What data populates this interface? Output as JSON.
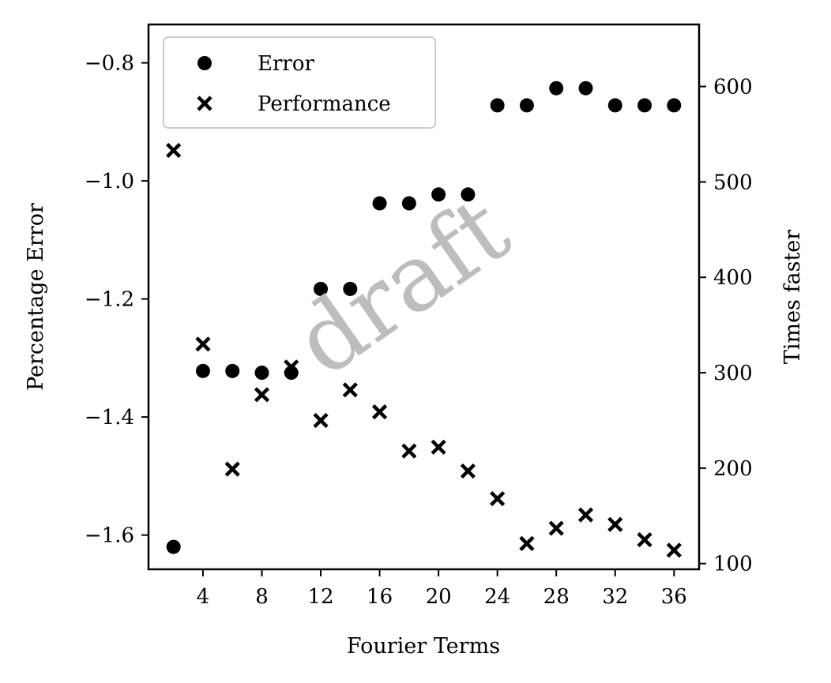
{
  "chart_data": {
    "type": "scatter",
    "xlabel": "Fourier Terms",
    "ylabel": "Percentage Error",
    "y2label": "Times faster",
    "x_ticks": [
      4,
      8,
      12,
      16,
      20,
      24,
      28,
      32,
      36
    ],
    "y_ticks": [
      -0.8,
      -1.0,
      -1.2,
      -1.4,
      -1.6
    ],
    "y2_ticks": [
      100,
      200,
      300,
      400,
      500,
      600
    ],
    "xlim": [
      0.3,
      37.7
    ],
    "ylim": [
      -1.658,
      -0.735
    ],
    "y2lim": [
      94,
      665
    ],
    "legend_position": "top-left",
    "grid": false,
    "watermark": "draft",
    "series": [
      {
        "name": "Error",
        "marker": "circle",
        "axis": "left",
        "x": [
          2,
          4,
          6,
          8,
          10,
          12,
          14,
          16,
          18,
          20,
          22,
          24,
          26,
          28,
          30,
          32,
          34,
          36
        ],
        "values": [
          -1.62,
          -1.322,
          -1.322,
          -1.325,
          -1.325,
          -1.183,
          -1.183,
          -1.038,
          -1.038,
          -1.023,
          -1.023,
          -0.872,
          -0.872,
          -0.843,
          -0.843,
          -0.872,
          -0.872,
          -0.872
        ]
      },
      {
        "name": "Performance",
        "marker": "x",
        "axis": "right",
        "x": [
          2,
          4,
          6,
          8,
          10,
          12,
          14,
          16,
          18,
          20,
          22,
          24,
          26,
          28,
          30,
          32,
          34,
          36
        ],
        "values": [
          533,
          330,
          199,
          277,
          306,
          250,
          282,
          259,
          218,
          222,
          197,
          168,
          121,
          137,
          151,
          141,
          125,
          114
        ]
      }
    ]
  }
}
